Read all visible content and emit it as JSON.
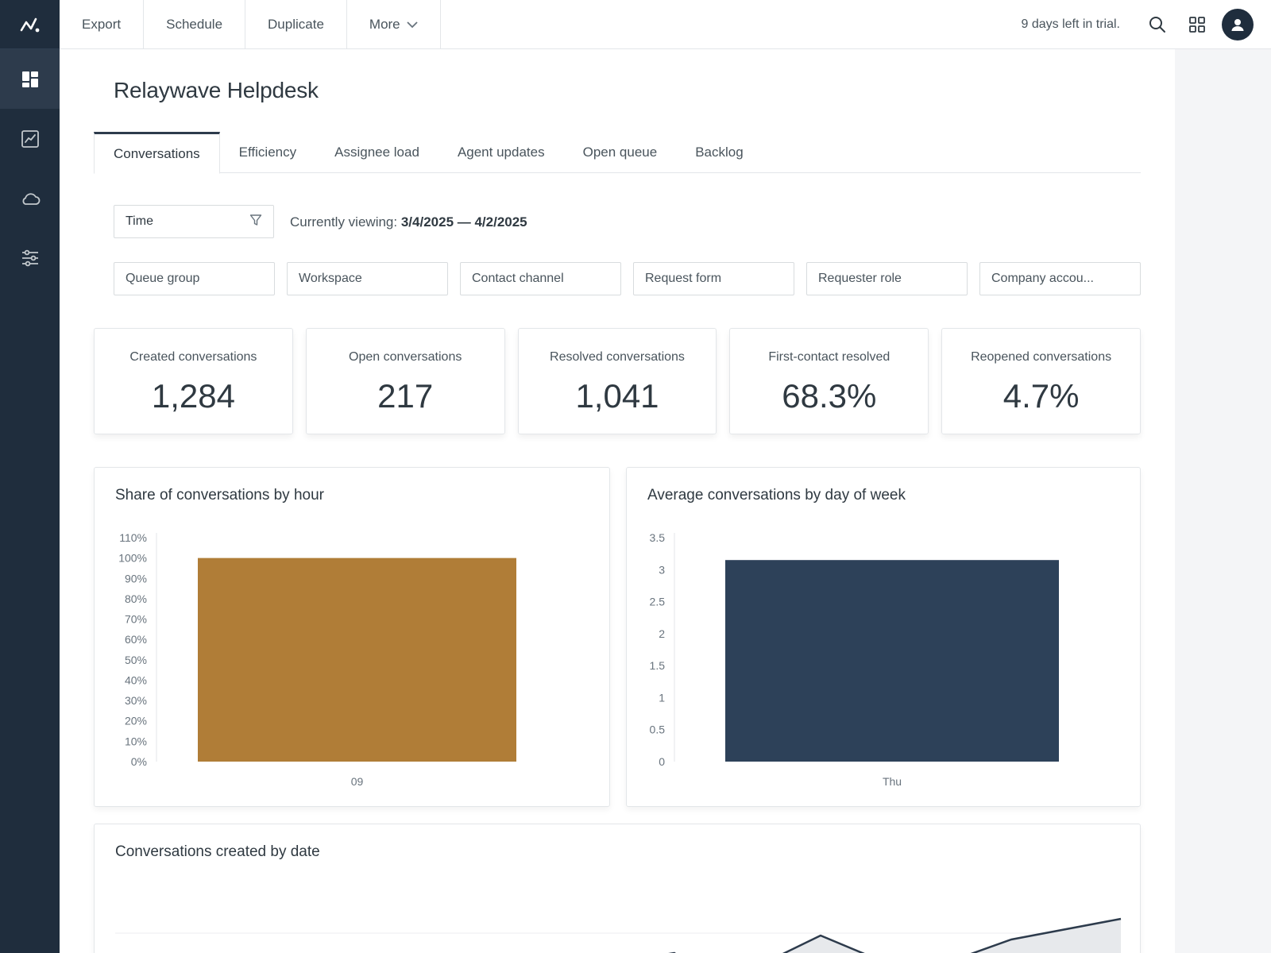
{
  "topbar": {
    "actions": [
      "Export",
      "Schedule",
      "Duplicate",
      "More"
    ],
    "trial_text": "9 days left in trial.",
    "icons": [
      "search-icon",
      "apps-grid-icon",
      "user-avatar-icon"
    ]
  },
  "sidebar": {
    "logo_icon": "product-logo-icon",
    "items": [
      "dashboard-icon",
      "line-chart-icon",
      "cloud-icon",
      "sliders-icon"
    ],
    "active_index": 0
  },
  "page": {
    "title": "Relaywave Helpdesk",
    "tabs": [
      "Conversations",
      "Efficiency",
      "Assignee load",
      "Agent updates",
      "Open queue",
      "Backlog"
    ],
    "active_tab": 0
  },
  "time_filter": {
    "label": "Time",
    "viewing_prefix": "Currently viewing:",
    "range": "3/4/2025 — 4/2/2025"
  },
  "filters": [
    "Queue group",
    "Workspace",
    "Contact channel",
    "Request form",
    "Requester role",
    "Company accou..."
  ],
  "kpis": [
    {
      "label": "Created conversations",
      "value": "1,284"
    },
    {
      "label": "Open conversations",
      "value": "217"
    },
    {
      "label": "Resolved conversations",
      "value": "1,041"
    },
    {
      "label": "First-contact resolved",
      "value": "68.3%"
    },
    {
      "label": "Reopened conversations",
      "value": "4.7%"
    }
  ],
  "colors": {
    "sidebar": "#1f2d3d",
    "hour_bar": "#b07d37",
    "day_bar": "#2d4159",
    "line": "#2d3b4c"
  },
  "chart_data": [
    {
      "type": "bar",
      "title": "Share of conversations by hour",
      "categories": [
        "09"
      ],
      "values": [
        100
      ],
      "y_unit": "%",
      "yticks": [
        "0%",
        "10%",
        "20%",
        "30%",
        "40%",
        "50%",
        "60%",
        "70%",
        "80%",
        "90%",
        "100%",
        "110%"
      ],
      "ylim": [
        0,
        110
      ]
    },
    {
      "type": "bar",
      "title": "Average conversations by day of week",
      "categories": [
        "Thu"
      ],
      "values": [
        3.15
      ],
      "yticks": [
        "0",
        "0.5",
        "1",
        "1.5",
        "2",
        "2.5",
        "3",
        "3.5"
      ],
      "ylim": [
        0,
        3.5
      ]
    },
    {
      "type": "area",
      "title": "Conversations created by date"
    }
  ]
}
